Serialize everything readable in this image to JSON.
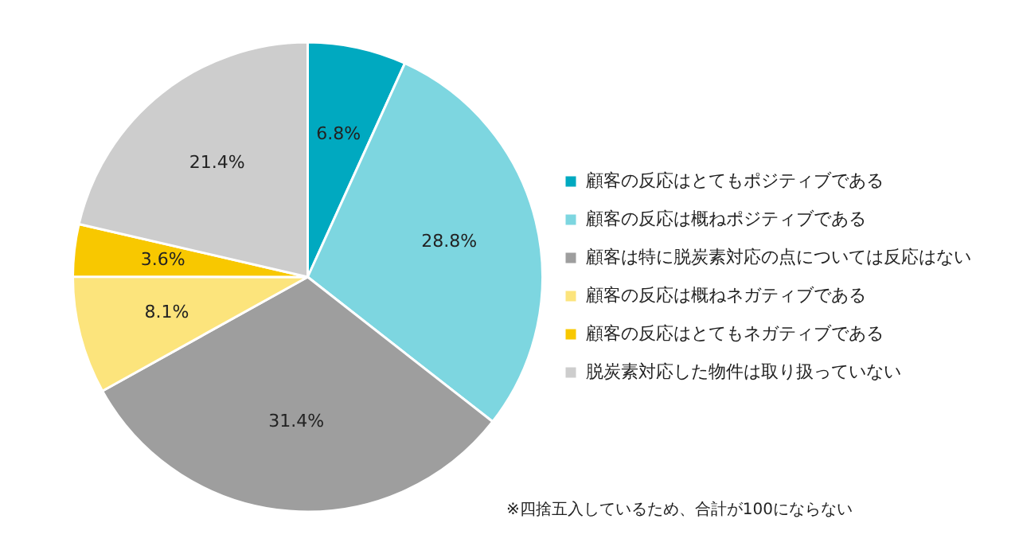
{
  "chart_data": {
    "type": "pie",
    "categories": [
      "顧客の反応はとてもポジティブである",
      "顧客の反応は概ねポジティブである",
      "顧客は特に脱炭素対応の点については反応はない",
      "顧客の反応は概ねネガティブである",
      "顧客の反応はとてもネガティブである",
      "脱炭素対応した物件は取り扱っていない"
    ],
    "values": [
      6.8,
      28.8,
      31.4,
      8.1,
      3.6,
      21.4
    ],
    "colors": [
      "#00a9c0",
      "#7dd6e0",
      "#9e9e9e",
      "#fce47c",
      "#f8c800",
      "#cdcdcd"
    ],
    "value_labels": [
      "6.8%",
      "28.8%",
      "31.4%",
      "8.1%",
      "3.6%",
      "21.4%"
    ],
    "legend": "right",
    "annotations": [
      "※四捨五入しているため、合計が100にならない"
    ]
  }
}
